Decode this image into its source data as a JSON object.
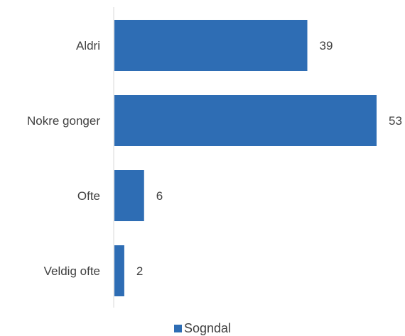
{
  "chart_data": {
    "type": "bar",
    "orientation": "horizontal",
    "categories": [
      "Aldri",
      "Nokre gonger",
      "Ofte",
      "Veldig ofte"
    ],
    "series": [
      {
        "name": "Sogndal",
        "values": [
          39,
          53,
          6,
          2
        ],
        "color": "#2E6DB4"
      }
    ],
    "data_labels": [
      "39",
      "53",
      "6",
      "2"
    ],
    "xlim": [
      0,
      60
    ],
    "x_axis_visible": false,
    "grid": false,
    "legend_position": "bottom"
  }
}
